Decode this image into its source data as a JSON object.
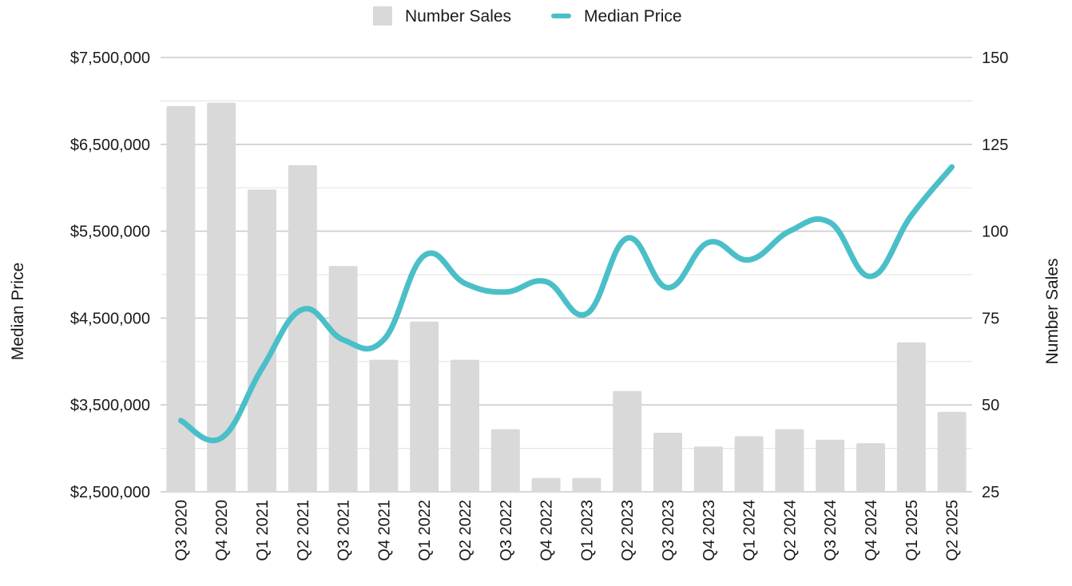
{
  "chart_data": {
    "type": "bar+line",
    "categories": [
      "Q3 2020",
      "Q4 2020",
      "Q1 2021",
      "Q2 2021",
      "Q3 2021",
      "Q4 2021",
      "Q1 2022",
      "Q2 2022",
      "Q3 2022",
      "Q4 2022",
      "Q1 2023",
      "Q2 2023",
      "Q3 2023",
      "Q4 2023",
      "Q1 2024",
      "Q2 2024",
      "Q3 2024",
      "Q4 2024",
      "Q1 2025",
      "Q2 2025"
    ],
    "series": [
      {
        "name": "Number Sales",
        "type": "bar",
        "axis": "right",
        "color": "#d9d9d9",
        "values": [
          136,
          137,
          112,
          119,
          90,
          63,
          74,
          63,
          43,
          29,
          29,
          54,
          42,
          38,
          41,
          43,
          40,
          39,
          68,
          48
        ]
      },
      {
        "name": "Median Price",
        "type": "line",
        "axis": "left",
        "color": "#4bbfc8",
        "values": [
          3320000,
          3120000,
          3920000,
          4600000,
          4250000,
          4250000,
          5220000,
          4900000,
          4800000,
          4920000,
          4550000,
          5420000,
          4850000,
          5370000,
          5170000,
          5500000,
          5600000,
          4980000,
          5680000,
          6240000
        ]
      }
    ],
    "y_left": {
      "label": "Median Price",
      "min": 2500000,
      "max": 7500000,
      "ticks": [
        "$2,500,000",
        "$3,500,000",
        "$4,500,000",
        "$5,500,000",
        "$6,500,000",
        "$7,500,000"
      ]
    },
    "y_right": {
      "label": "Number Sales",
      "min": 25,
      "max": 150,
      "ticks": [
        "25",
        "50",
        "75",
        "100",
        "125",
        "150"
      ]
    },
    "legend": {
      "position": "top-center",
      "items": [
        "Number Sales",
        "Median Price"
      ]
    },
    "grid": true,
    "gridline_color": "#cccccc",
    "minor_gridline_color": "#e6e6e6"
  }
}
